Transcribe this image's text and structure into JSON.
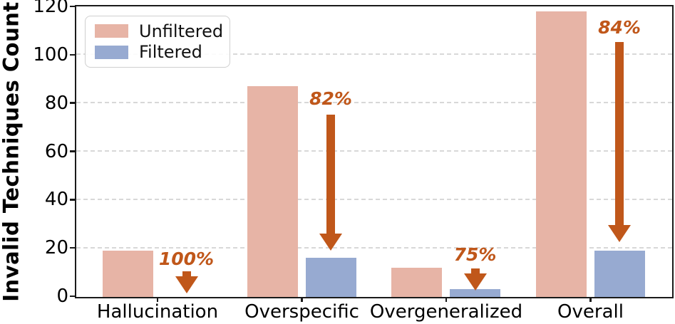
{
  "chart_data": {
    "type": "bar",
    "title": "",
    "xlabel": "",
    "ylabel": "Invalid Techniques Count",
    "categories": [
      "Hallucination",
      "Overspecific",
      "Overgeneralized",
      "Overall"
    ],
    "series": [
      {
        "name": "Unfiltered",
        "color": "#e7b4a6",
        "values": [
          19,
          87,
          12,
          118
        ]
      },
      {
        "name": "Filtered",
        "color": "#97aad1",
        "values": [
          0,
          16,
          3,
          19
        ]
      }
    ],
    "reduction_annotations": [
      {
        "category": "Hallucination",
        "label": "100%"
      },
      {
        "category": "Overspecific",
        "label": "82%"
      },
      {
        "category": "Overgeneralized",
        "label": "75%"
      },
      {
        "category": "Overall",
        "label": "84%"
      }
    ],
    "annotation_color": "#c0571a",
    "yticks": [
      0,
      20,
      40,
      60,
      80,
      100,
      120
    ],
    "ylim": [
      0,
      120
    ],
    "grid": "horizontal-dashed",
    "gridlines_at": [
      20,
      40,
      60,
      80,
      100
    ],
    "legend_position": "upper-left"
  }
}
